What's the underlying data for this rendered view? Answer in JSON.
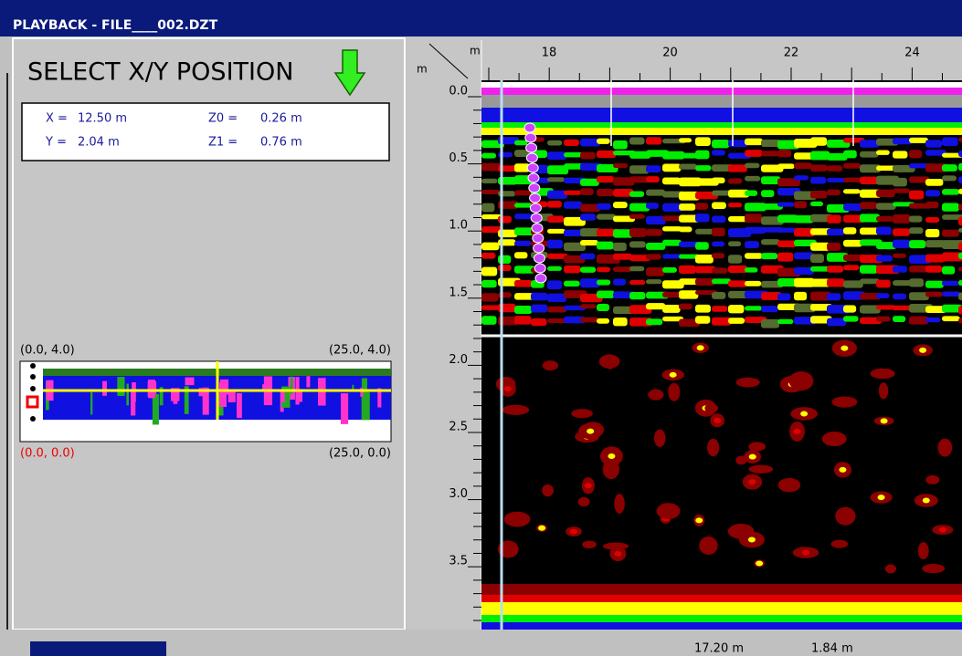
{
  "window": {
    "title": "PLAYBACK - FILE____002.DZT"
  },
  "left_panel": {
    "heading": "SELECT X/Y POSITION",
    "readout": {
      "rows": [
        [
          {
            "label": "X =",
            "value": "12.50 m"
          },
          {
            "label": "Z0 =",
            "value": "0.26 m"
          }
        ],
        [
          {
            "label": "Y =",
            "value": "2.04 m"
          },
          {
            "label": "Z1 =",
            "value": "0.76 m"
          }
        ]
      ]
    },
    "map": {
      "top_left": "(0.0, 4.0)",
      "top_right": "(25.0, 4.0)",
      "bottom_left": "(0.0, 0.0)",
      "bottom_right": "(25.0, 0.0)"
    }
  },
  "radargram": {
    "corner_x_unit": "m",
    "corner_y_unit": "m",
    "distance_labels": [
      "18",
      "20",
      "22",
      "24"
    ],
    "depth_labels": [
      "0.0",
      "0.5",
      "1.0",
      "1.5",
      "2.0",
      "2.5",
      "3.0",
      "3.5"
    ]
  },
  "status_bar": {
    "distance": "17.20 m",
    "depth": "1.84 m"
  }
}
